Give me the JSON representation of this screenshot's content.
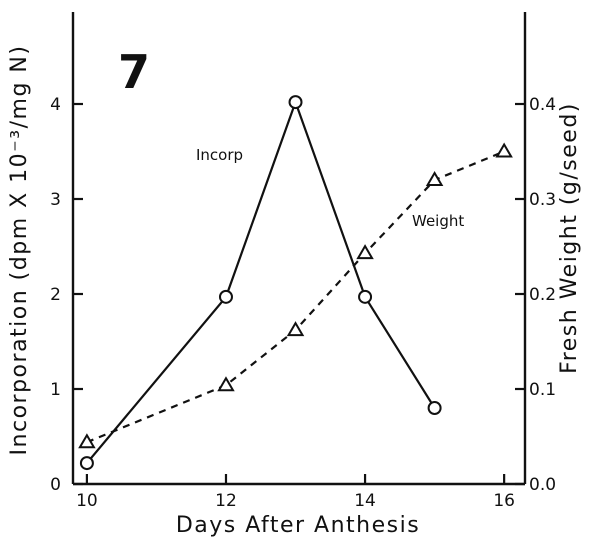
{
  "chart_data": {
    "type": "line",
    "title": "",
    "panel_label": "7",
    "xlabel": "Days After Anthesis",
    "ylabel_left": "Incorporation (dpm X 10⁻³/mg N)",
    "ylabel_right": "Fresh Weight (g/seed)",
    "xlim": [
      9.8,
      16.3
    ],
    "ylim_left": [
      0,
      5
    ],
    "ylim_right": [
      0,
      0.5
    ],
    "x_ticks": [
      10,
      12,
      14,
      16
    ],
    "x_tick_labels": [
      "10",
      "12",
      "14",
      "16"
    ],
    "y_left_ticks": [
      0,
      1,
      2,
      3,
      4
    ],
    "y_left_tick_labels": [
      "0",
      "1",
      "2",
      "3",
      "4"
    ],
    "y_right_ticks": [
      0,
      0.1,
      0.2,
      0.3,
      0.4
    ],
    "y_right_tick_labels": [
      "0.0",
      "0.1",
      "0.2",
      "0.3",
      "0.4"
    ],
    "grid": false,
    "series": [
      {
        "name": "Incorp",
        "axis": "left",
        "marker": "circle",
        "line_style": "solid",
        "x": [
          10,
          12,
          13,
          14,
          15
        ],
        "y": [
          0.22,
          1.97,
          4.02,
          1.97,
          0.8
        ]
      },
      {
        "name": "Weight",
        "axis": "right",
        "marker": "triangle",
        "line_style": "dashed",
        "x": [
          10,
          12,
          13,
          14,
          15,
          16
        ],
        "y": [
          0.044,
          0.104,
          0.162,
          0.243,
          0.32,
          0.35
        ]
      }
    ]
  }
}
